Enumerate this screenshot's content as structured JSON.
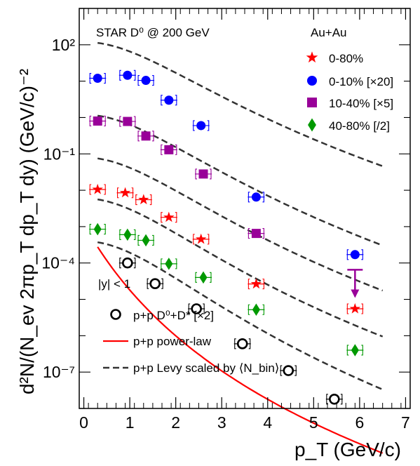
{
  "chart_data": {
    "type": "scatter",
    "title": "STAR D⁰ @ 200 GeV",
    "system_label": "Au+Au",
    "rapidity_label": "|y| < 1",
    "xlabel": "p_T (GeV/c)",
    "ylabel": "d²N/(N_ev 2πp_T dp_T dy) (GeV/c)⁻²",
    "xlim": [
      -0.1,
      7.1
    ],
    "ylim": [
      1e-08,
      1000
    ],
    "yscale": "log",
    "x_ticks": [
      "0",
      "1",
      "2",
      "3",
      "4",
      "5",
      "6",
      "7"
    ],
    "y_ticks": [
      "10²",
      "10⁻¹",
      "10⁻⁴",
      "10⁻⁷"
    ],
    "legend_placement": "top-right",
    "series": [
      {
        "name": "0-80%",
        "marker": "star",
        "color": "#ff0000",
        "x": [
          0.3,
          0.9,
          1.3,
          1.85,
          2.55,
          3.75,
          5.9
        ],
        "y": [
          0.0105,
          0.0085,
          0.0055,
          0.0018,
          0.00045,
          2.65e-05,
          5.5e-06
        ]
      },
      {
        "name": "0-10% [×20]",
        "marker": "circle",
        "color": "#0000ff",
        "x": [
          0.3,
          0.95,
          1.35,
          1.85,
          2.55,
          3.75,
          5.9
        ],
        "y": [
          12,
          14.5,
          10.5,
          3.0,
          0.6,
          0.0065,
          0.00017
        ]
      },
      {
        "name": "10-40% [×5]",
        "marker": "square",
        "color": "#990099",
        "x": [
          0.3,
          0.95,
          1.35,
          1.85,
          2.6,
          3.75
        ],
        "y": [
          0.8,
          0.78,
          0.31,
          0.13,
          0.028,
          0.00065
        ]
      },
      {
        "name": "40-80% [/2]",
        "marker": "diamond",
        "color": "#009900",
        "x": [
          0.3,
          0.95,
          1.35,
          1.85,
          2.6,
          3.75,
          5.9
        ],
        "y": [
          0.00085,
          0.0006,
          0.00042,
          9.5e-05,
          4e-05,
          5.2e-06,
          4e-07
        ]
      },
      {
        "name": "p+p D⁰+D* [×2]",
        "marker": "open-circle",
        "color": "#000000",
        "x": [
          0.95,
          1.55,
          2.45,
          3.45,
          4.45,
          5.45
        ],
        "y": [
          0.0001,
          2.7e-05,
          5.5e-06,
          6e-07,
          1.1e-07,
          1.8e-08
        ]
      }
    ],
    "upper_limit": {
      "color": "#990099",
      "x": 5.9,
      "y_from": 6.5e-05,
      "y_to": 1.2e-05
    },
    "curves": [
      {
        "name": "p+p power-law",
        "style": "solid",
        "color": "#ff0000"
      },
      {
        "name": "p+p Levy scaled by ⟨N_bin⟩",
        "style": "dashed",
        "color": "#333333"
      }
    ]
  }
}
